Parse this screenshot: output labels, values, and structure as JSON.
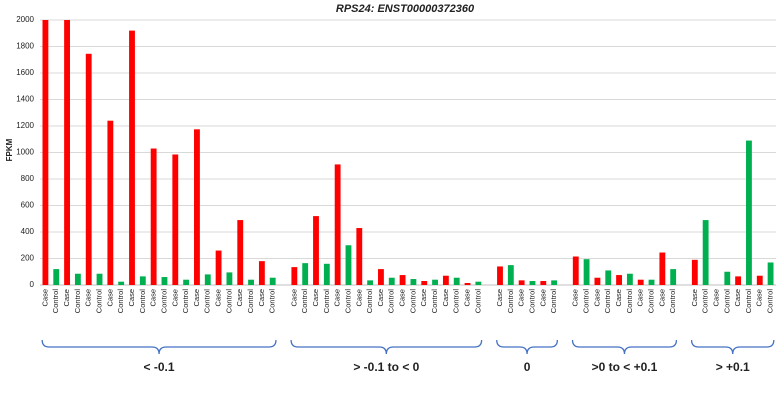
{
  "chart_data": {
    "type": "bar",
    "title": "RPS24: ENST00000372360",
    "y_label": "FPKM",
    "ylim": [
      0,
      2000
    ],
    "yticks": [
      0,
      200,
      400,
      600,
      800,
      1000,
      1200,
      1400,
      1600,
      1800,
      2000
    ],
    "grid": true,
    "categories": [
      "Case",
      "Control",
      "Case",
      "Control",
      "Case",
      "Control",
      "Case",
      "Control",
      "Case",
      "Control",
      "Case",
      "Control",
      "Case",
      "Control",
      "Case",
      "Control",
      "Case",
      "Control",
      "Case",
      "Control",
      "Case",
      "Control",
      null,
      "Case",
      "Control",
      "Case",
      "Control",
      "Case",
      "Control",
      "Case",
      "Control",
      "Case",
      "Control",
      "Case",
      "Control",
      "Case",
      "Control",
      "Case",
      "Control",
      "Case",
      "Control",
      null,
      "Case",
      "Control",
      "Case",
      "Control",
      "Case",
      "Control",
      null,
      "Case",
      "Control",
      "Case",
      "Control",
      "Case",
      "Control",
      "Case",
      "Control",
      "Case",
      "Control",
      null,
      "Case",
      "Control",
      "Case",
      "Control",
      "Case",
      "Control",
      "Case",
      "Control"
    ],
    "values": [
      2000,
      120,
      2000,
      85,
      1745,
      85,
      1240,
      25,
      1920,
      65,
      1030,
      60,
      985,
      40,
      1175,
      80,
      260,
      95,
      490,
      40,
      180,
      55,
      null,
      135,
      165,
      520,
      160,
      910,
      300,
      430,
      35,
      120,
      55,
      75,
      45,
      30,
      40,
      70,
      55,
      15,
      25,
      null,
      140,
      150,
      35,
      30,
      30,
      35,
      null,
      215,
      195,
      55,
      110,
      75,
      85,
      40,
      40,
      245,
      120,
      null,
      190,
      490,
      0,
      100,
      65,
      1090,
      70,
      170
    ],
    "colors": {
      "Case": "#ff0000",
      "Control": "#00b050"
    },
    "groups": [
      "< -0.1",
      "> -0.1 to < 0",
      "0",
      ">0 to < +0.1",
      "> +0.1"
    ]
  }
}
